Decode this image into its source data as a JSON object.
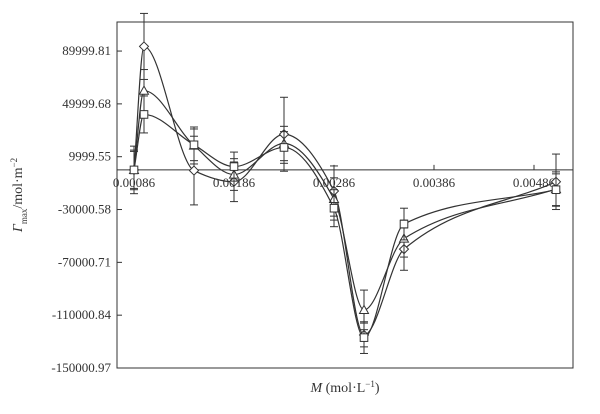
{
  "chart_data": {
    "type": "line",
    "title": "",
    "xlabel_parts": [
      "M",
      " (mol·L",
      "−1",
      ")"
    ],
    "ylabel_parts": [
      "Γ",
      "max",
      "/mol·m",
      "−2"
    ],
    "xlim": [
      0.00069,
      0.00525
    ],
    "ylim": [
      -150000.97,
      112000
    ],
    "yticks": [
      "89999.81",
      "49999.68",
      "9999.55",
      "-30000.58",
      "-70000.71",
      "-110000.84",
      "-150000.97"
    ],
    "ytick_values": [
      89999.81,
      49999.68,
      9999.55,
      -30000.58,
      -70000.71,
      -110000.84,
      -150000.97
    ],
    "xticks": [
      "0.00086",
      "0.00186",
      "0.00286",
      "0.00386",
      "0.00486"
    ],
    "xtick_values": [
      0.00086,
      0.00186,
      0.00286,
      0.00386,
      0.00486
    ],
    "baseline_y": 0,
    "series": [
      {
        "marker": "diamond",
        "x": [
          0.00086,
          0.00096,
          0.00146,
          0.00186,
          0.00236,
          0.00286,
          0.00316,
          0.00356,
          0.00508
        ],
        "y": [
          0,
          93500,
          -500,
          -9000,
          27000,
          -16000,
          -125000,
          -60000,
          -9000
        ],
        "err": [
          18000,
          25000,
          26000,
          15000,
          28000,
          19000,
          9000,
          16000,
          21000
        ]
      },
      {
        "marker": "triangle",
        "x": [
          0.00086,
          0.00096,
          0.00146,
          0.00186,
          0.00236,
          0.00286,
          0.00316,
          0.00356,
          0.00508
        ],
        "y": [
          0,
          60000,
          18500,
          -3500,
          20000,
          -22000,
          -106000,
          -52000,
          -14500
        ],
        "err": [
          15000,
          16000,
          14000,
          12000,
          13000,
          16000,
          15000,
          14000,
          13000
        ]
      },
      {
        "marker": "square",
        "x": [
          0.00086,
          0.00096,
          0.00146,
          0.00186,
          0.00236,
          0.00286,
          0.00316,
          0.00356,
          0.00508
        ],
        "y": [
          0,
          42000,
          19000,
          2500,
          17000,
          -29000,
          -127000,
          -41000,
          -15000
        ],
        "err": [
          14000,
          14000,
          12000,
          11000,
          12000,
          14000,
          12000,
          12000,
          12000
        ]
      }
    ]
  }
}
